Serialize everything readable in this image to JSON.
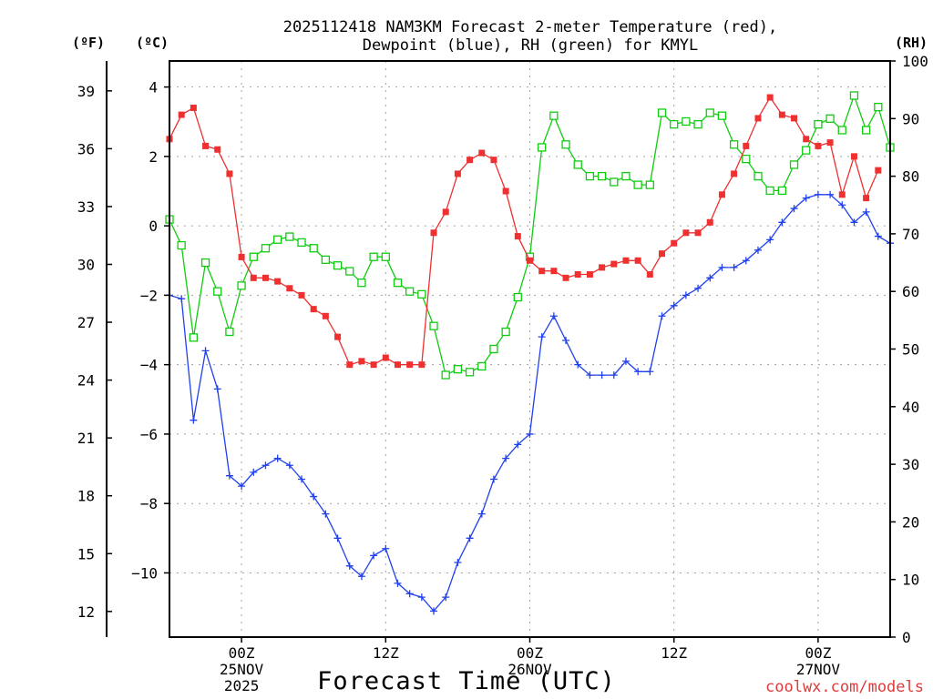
{
  "chart_data": {
    "type": "line",
    "title_lines": [
      "2025112418 NAM3KM Forecast 2-meter Temperature (red),",
      "Dewpoint (blue), RH (green) for KMYL"
    ],
    "xlabel": "Forecast Time (UTC)",
    "credit": "coolwx.com/models",
    "units": {
      "fahrenheit": "(ºF)",
      "celsius": "(ºC)",
      "rh": "(RH)"
    },
    "x_range_hours": [
      0,
      60
    ],
    "celsius_range": [
      -11.85,
      4.75
    ],
    "rh_range": [
      0,
      100
    ],
    "celsius_ticks": [
      {
        "value": 4,
        "label": "4"
      },
      {
        "value": 2,
        "label": "2"
      },
      {
        "value": 0,
        "label": "0"
      },
      {
        "value": -2,
        "label": "−2"
      },
      {
        "value": -4,
        "label": "−4"
      },
      {
        "value": -6,
        "label": "−6"
      },
      {
        "value": -8,
        "label": "−8"
      },
      {
        "value": -10,
        "label": "−10"
      }
    ],
    "fahrenheit_ticks": [
      "39",
      "36",
      "33",
      "30",
      "27",
      "24",
      "21",
      "18",
      "15",
      "12"
    ],
    "rh_ticks": [
      "0",
      "10",
      "20",
      "30",
      "40",
      "50",
      "60",
      "70",
      "80",
      "90",
      "100"
    ],
    "x_ticks": [
      {
        "hour": 6,
        "lines": [
          "00Z",
          "25NOV",
          "2025"
        ]
      },
      {
        "hour": 18,
        "lines": [
          "12Z"
        ]
      },
      {
        "hour": 30,
        "lines": [
          "00Z",
          "26NOV"
        ]
      },
      {
        "hour": 42,
        "lines": [
          "12Z"
        ]
      },
      {
        "hour": 54,
        "lines": [
          "00Z",
          "27NOV"
        ]
      }
    ],
    "series": [
      {
        "name": "Temperature",
        "unit": "celsius",
        "color": "#ee3030",
        "marker": "filled-square",
        "x": [
          0,
          1,
          2,
          3,
          4,
          5,
          6,
          7,
          8,
          9,
          10,
          11,
          12,
          13,
          14,
          15,
          16,
          17,
          18,
          19,
          20,
          21,
          22,
          23,
          24,
          25,
          26,
          27,
          28,
          29,
          30,
          31,
          32,
          33,
          34,
          35,
          36,
          37,
          38,
          39,
          40,
          41,
          42,
          43,
          44,
          45,
          46,
          47,
          48,
          49,
          50,
          51,
          52,
          53,
          54,
          55,
          56,
          57,
          58,
          59,
          60
        ],
        "values": [
          2.5,
          3.2,
          3.4,
          2.3,
          2.2,
          1.5,
          -0.9,
          -1.5,
          -1.5,
          -1.6,
          -1.8,
          -2.0,
          -2.4,
          -2.6,
          -3.2,
          -4.0,
          -3.9,
          -4.0,
          -3.8,
          -4.0,
          -4.0,
          -4.0,
          -0.2,
          0.4,
          1.5,
          1.9,
          2.1,
          1.9,
          1.0,
          -0.3,
          -1.0,
          -1.3,
          -1.3,
          -1.5,
          -1.4,
          -1.4,
          -1.2,
          -1.1,
          -1.0,
          -1.0,
          -1.4,
          -0.8,
          -0.5,
          -0.2,
          -0.2,
          0.1,
          0.9,
          1.5,
          2.3,
          3.1,
          3.7,
          3.2,
          3.1,
          2.5,
          2.3,
          2.4,
          0.9,
          2.0,
          0.8,
          1.6,
          null
        ]
      },
      {
        "name": "Dewpoint",
        "unit": "celsius",
        "color": "#2040ee",
        "marker": "plus",
        "x": [
          0,
          1,
          2,
          3,
          4,
          5,
          6,
          7,
          8,
          9,
          10,
          11,
          12,
          13,
          14,
          15,
          16,
          17,
          18,
          19,
          20,
          21,
          22,
          23,
          24,
          25,
          26,
          27,
          28,
          29,
          30,
          31,
          32,
          33,
          34,
          35,
          36,
          37,
          38,
          39,
          40,
          41,
          42,
          43,
          44,
          45,
          46,
          47,
          48,
          49,
          50,
          51,
          52,
          53,
          54,
          55,
          56,
          57,
          58,
          59,
          60
        ],
        "values": [
          -2.0,
          -2.1,
          -5.6,
          -3.6,
          -4.7,
          -7.2,
          -7.5,
          -7.1,
          -6.9,
          -6.7,
          -6.9,
          -7.3,
          -7.8,
          -8.3,
          -9.0,
          -9.8,
          -10.1,
          -9.5,
          -9.3,
          -10.3,
          -10.6,
          -10.7,
          -11.1,
          -10.7,
          -9.7,
          -9.0,
          -8.3,
          -7.3,
          -6.7,
          -6.3,
          -6.0,
          -3.2,
          -2.6,
          -3.3,
          -4.0,
          -4.3,
          -4.3,
          -4.3,
          -3.9,
          -4.2,
          -4.2,
          -2.6,
          -2.3,
          -2.0,
          -1.8,
          -1.5,
          -1.2,
          -1.2,
          -1.0,
          -0.7,
          -0.4,
          0.1,
          0.5,
          0.8,
          0.9,
          0.9,
          0.6,
          0.1,
          0.4,
          -0.3,
          -0.5
        ]
      },
      {
        "name": "Relative Humidity",
        "unit": "rh",
        "color": "#10cc10",
        "marker": "open-square",
        "x": [
          0,
          1,
          2,
          3,
          4,
          5,
          6,
          7,
          8,
          9,
          10,
          11,
          12,
          13,
          14,
          15,
          16,
          17,
          18,
          19,
          20,
          21,
          22,
          23,
          24,
          25,
          26,
          27,
          28,
          29,
          30,
          31,
          32,
          33,
          34,
          35,
          36,
          37,
          38,
          39,
          40,
          41,
          42,
          43,
          44,
          45,
          46,
          47,
          48,
          49,
          50,
          51,
          52,
          53,
          54,
          55,
          56,
          57,
          58,
          59,
          60
        ],
        "values": [
          72.5,
          68,
          52,
          65,
          60,
          53,
          61,
          66,
          67.5,
          69,
          69.5,
          68.5,
          67.5,
          65.5,
          64.5,
          63.5,
          61.5,
          66,
          66,
          61.5,
          60,
          59.5,
          54,
          45.5,
          46.5,
          46,
          47,
          50,
          53,
          59,
          66,
          85,
          90.5,
          85.5,
          82,
          80,
          80,
          79,
          80,
          78.5,
          78.5,
          91,
          89,
          89.5,
          89,
          91,
          90.5,
          85.5,
          83,
          80,
          77.5,
          77.5,
          82,
          84.5,
          89,
          90,
          88,
          94,
          88,
          92,
          85
        ]
      }
    ]
  }
}
